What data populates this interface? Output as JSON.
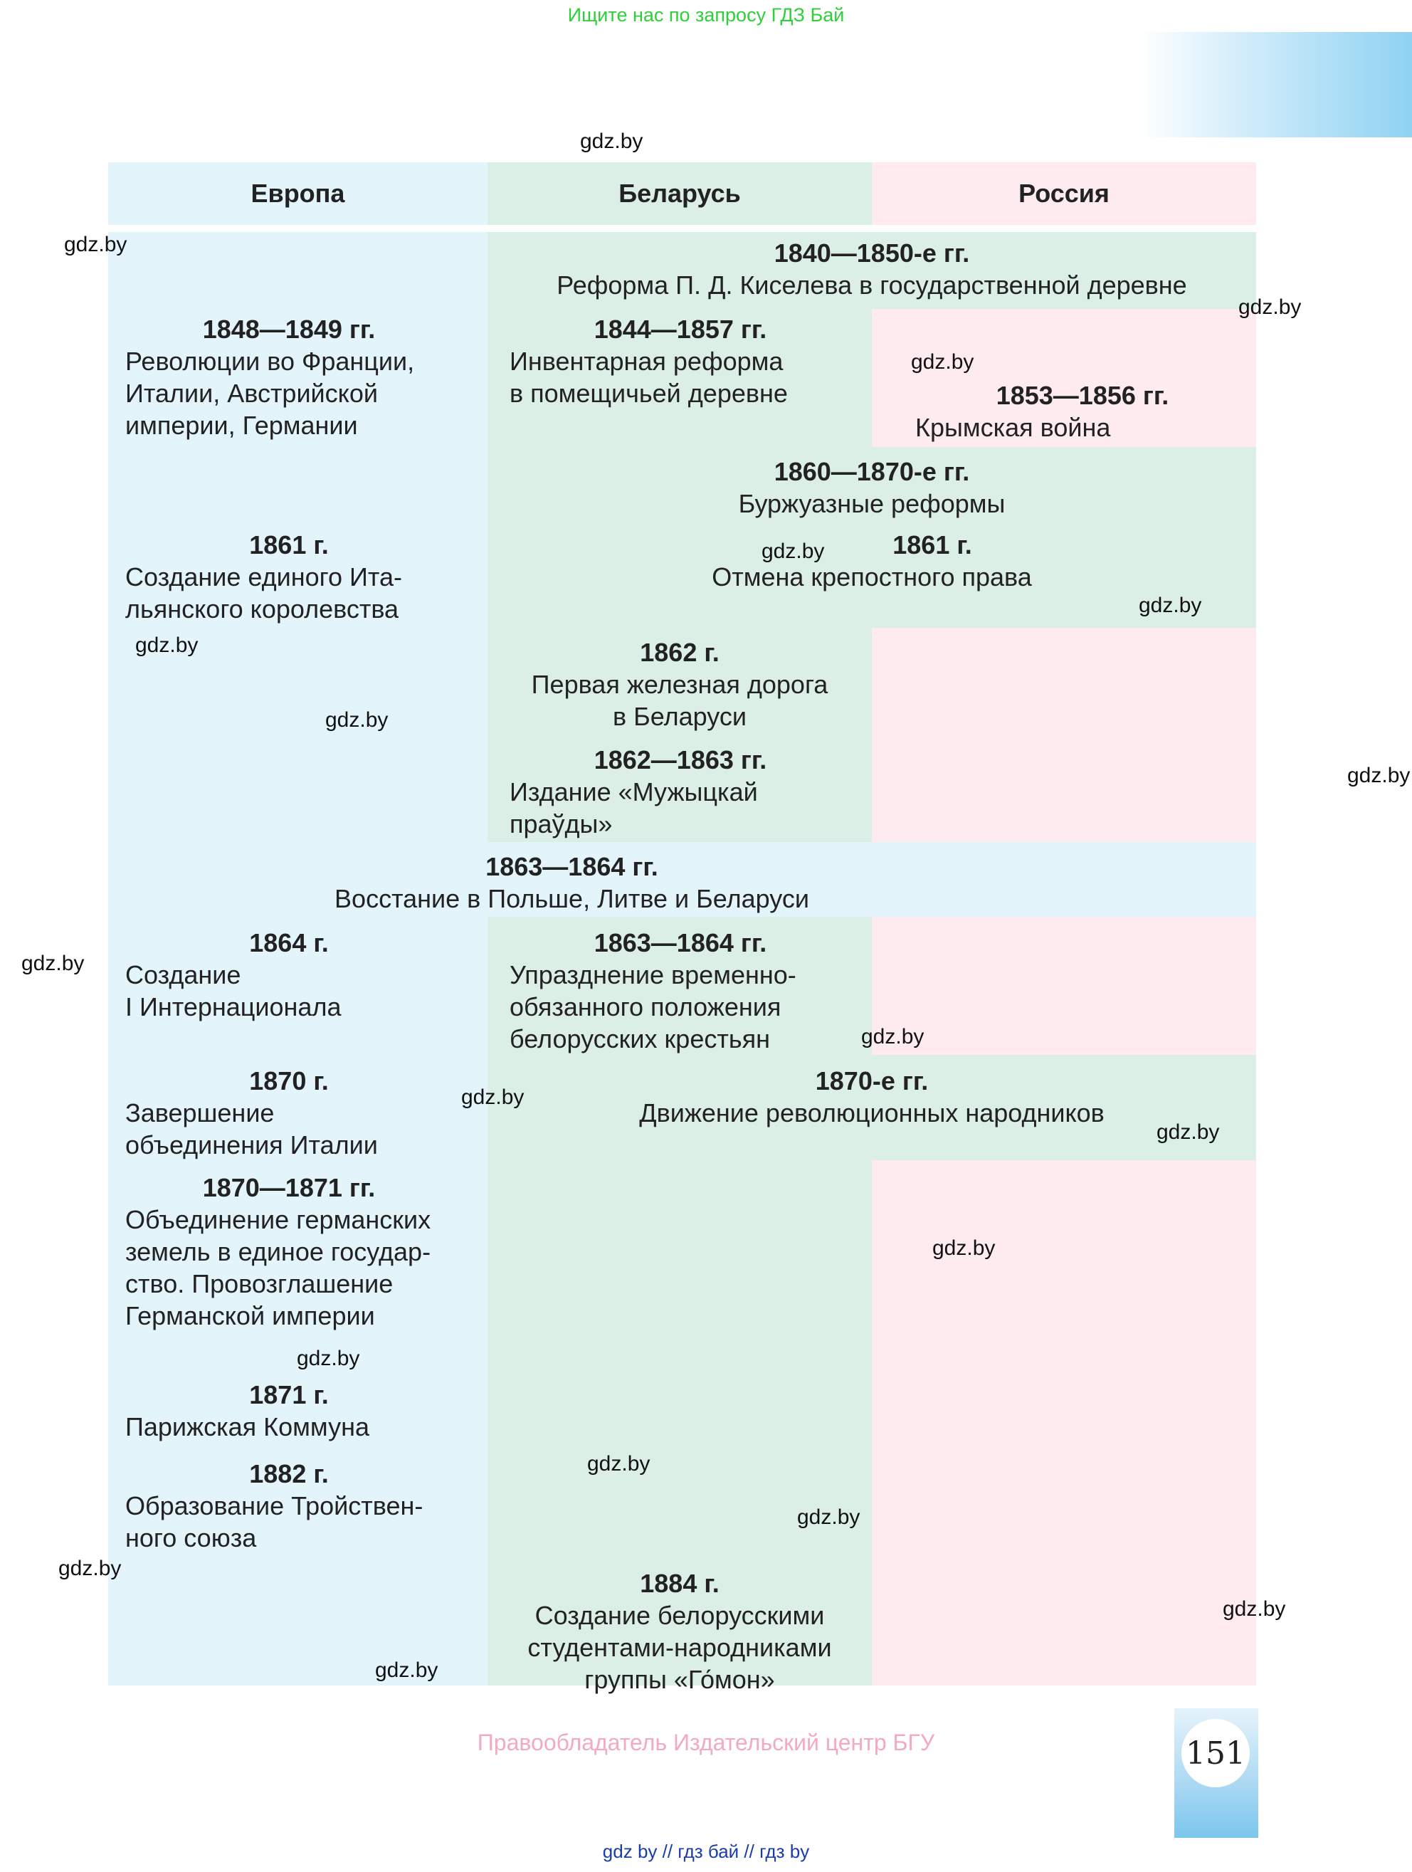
{
  "top_banner": "Ищите нас по запросу ГДЗ Бай",
  "header": {
    "europe": "Европа",
    "belarus": "Беларусь",
    "russia": "Россия"
  },
  "events": {
    "kiselev": {
      "year": "1840—1850-е гг.",
      "line1": "Реформа П. Д. Киселева в государственной деревне"
    },
    "revolutions": {
      "year": "1848—1849 гг.",
      "line1": "Революции во Франции,",
      "line2": "Италии, Австрийской",
      "line3": "империи, Германии"
    },
    "inventory": {
      "year": "1844—1857 гг.",
      "line1": "Инвентарная реформа",
      "line2": "в помещичьей деревне"
    },
    "crimean": {
      "year": "1853—1856 гг.",
      "line1": "Крымская война"
    },
    "bourgeois": {
      "year": "1860—1870-е гг.",
      "line1": "Буржуазные реформы"
    },
    "italy_kingdom": {
      "year": "1861 г.",
      "line1": "Создание единого Ита-",
      "line2": "льянского королевства"
    },
    "serfdom": {
      "year": "1861 г.",
      "line1": "Отмена крепостного права"
    },
    "railway": {
      "year": "1862 г.",
      "line1": "Первая железная дорога",
      "line2": "в Беларуси"
    },
    "pravda": {
      "year": "1862—1863 гг.",
      "line1": "Издание «Мужыцкай",
      "line2": "праўды»"
    },
    "uprising": {
      "year": "1863—1864 гг.",
      "line1": "Восстание в Польше, Литве и Беларуси"
    },
    "international": {
      "year": "1864 г.",
      "line1": "Создание",
      "line2": "I Интернационала"
    },
    "obligation": {
      "year": "1863—1864 гг.",
      "line1": "Упразднение временно-",
      "line2": "обязанного положения",
      "line3": "белорусских крестьян"
    },
    "italy_unification": {
      "year": "1870 г.",
      "line1": "Завершение",
      "line2": "объединения Италии"
    },
    "narodniks": {
      "year": "1870-е гг.",
      "line1": "Движение революционных народников"
    },
    "german_empire": {
      "year": "1870—1871 гг.",
      "line1": "Объединение германских",
      "line2": "земель в единое государ-",
      "line3": "ство. Провозглашение",
      "line4": "Германской империи"
    },
    "commune": {
      "year": "1871 г.",
      "line1": "Парижская Коммуна"
    },
    "triple_alliance": {
      "year": "1882 г.",
      "line1": "Образование Тройствен-",
      "line2": "ного союза"
    },
    "gomon": {
      "year": "1884 г.",
      "line1": "Создание белорусскими",
      "line2": "студентами-народниками",
      "line3": "группы «Го́мон»"
    }
  },
  "watermark": "gdz.by",
  "footer_credit": "Правообладатель Издательский центр БГУ",
  "page_number": "151",
  "bottom_links": "gdz by  //  гдз бай  //  гдз by"
}
